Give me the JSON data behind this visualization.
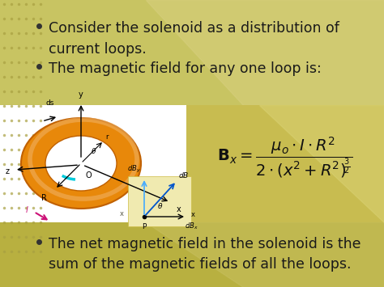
{
  "bg_main": "#c8c060",
  "bg_mid": "#c4bc52",
  "bg_bottom": "#bab044",
  "bg_diagram_white": "#ffffff",
  "bg_formula_yellow": "#d4ca6a",
  "bg_vec_light": "#f0eab0",
  "solenoid_outer": "#e8880a",
  "solenoid_inner_bg": "#ffffff",
  "solenoid_edge": "#c06000",
  "text_dark": "#1a1a1a",
  "bullet1_line1": "Consider the solenoid as a distribution of",
  "bullet1_line2": "current loops.",
  "bullet2": "The magnetic field for any one loop is:",
  "bullet3_line1": "The net magnetic field in the solenoid is the",
  "bullet3_line2": "sum of the magnetic fields of all the loops.",
  "dot_color": "#a8a040",
  "arrow_color": "#000000",
  "current_arrow_color": "#cc1177",
  "dBy_color": "#44aaff",
  "dB_color": "#0055cc"
}
